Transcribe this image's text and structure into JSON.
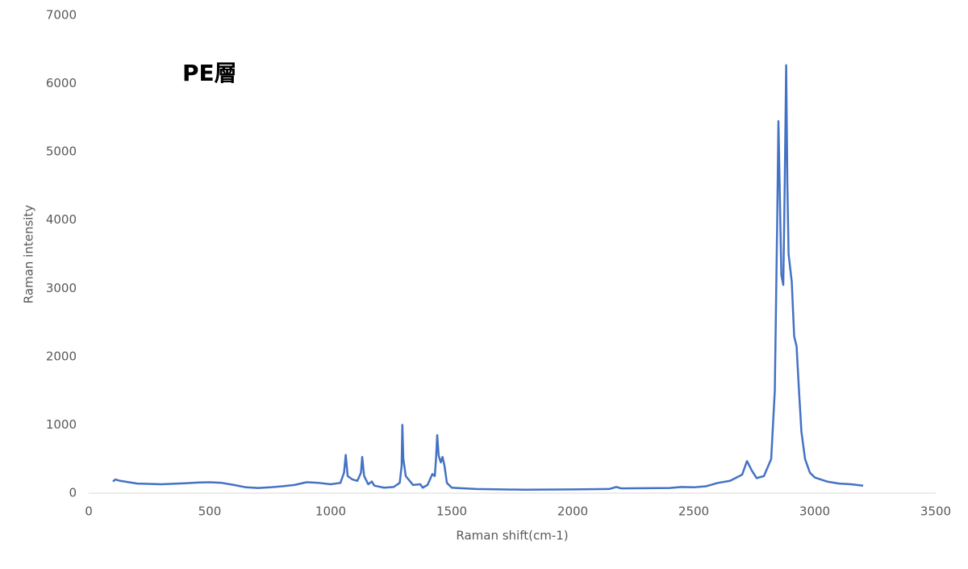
{
  "chart_data": {
    "type": "line",
    "annotation": "PE層",
    "x_label": "Raman shift(cm-1)",
    "y_label": "Raman intensity",
    "xlim": [
      0,
      3500
    ],
    "xticks": [
      0,
      500,
      1000,
      1500,
      2000,
      2500,
      3000,
      3500
    ],
    "ylim": [
      0,
      7000
    ],
    "yticks": [
      0,
      1000,
      2000,
      3000,
      4000,
      5000,
      6000,
      7000
    ],
    "grid": false,
    "x": [
      100,
      110,
      130,
      200,
      300,
      400,
      450,
      500,
      550,
      600,
      650,
      700,
      750,
      800,
      850,
      900,
      950,
      1000,
      1040,
      1055,
      1062,
      1070,
      1090,
      1110,
      1125,
      1130,
      1138,
      1155,
      1170,
      1180,
      1220,
      1260,
      1285,
      1293,
      1296,
      1300,
      1310,
      1340,
      1370,
      1380,
      1400,
      1420,
      1430,
      1435,
      1440,
      1446,
      1455,
      1462,
      1470,
      1480,
      1500,
      1600,
      1800,
      2000,
      2150,
      2180,
      2200,
      2400,
      2450,
      2500,
      2550,
      2600,
      2650,
      2700,
      2720,
      2740,
      2760,
      2790,
      2820,
      2835,
      2845,
      2850,
      2855,
      2862,
      2870,
      2876,
      2882,
      2887,
      2892,
      2905,
      2915,
      2925,
      2935,
      2945,
      2960,
      2980,
      3000,
      3050,
      3100,
      3150,
      3200
    ],
    "series": [
      {
        "name": "Raman intensity",
        "color": "#4472c4",
        "values": [
          170,
          200,
          180,
          140,
          130,
          145,
          155,
          160,
          150,
          120,
          85,
          75,
          85,
          100,
          120,
          160,
          150,
          130,
          150,
          300,
          560,
          250,
          200,
          180,
          300,
          530,
          250,
          130,
          170,
          110,
          80,
          90,
          150,
          400,
          1000,
          500,
          250,
          120,
          130,
          80,
          120,
          280,
          250,
          500,
          850,
          550,
          450,
          530,
          400,
          150,
          80,
          60,
          50,
          55,
          60,
          90,
          70,
          75,
          90,
          85,
          100,
          150,
          180,
          270,
          470,
          330,
          220,
          250,
          500,
          1500,
          4000,
          5450,
          4500,
          3200,
          3050,
          4500,
          6270,
          4500,
          3500,
          3100,
          2300,
          2150,
          1500,
          900,
          500,
          300,
          230,
          170,
          140,
          130,
          110
        ]
      }
    ]
  }
}
